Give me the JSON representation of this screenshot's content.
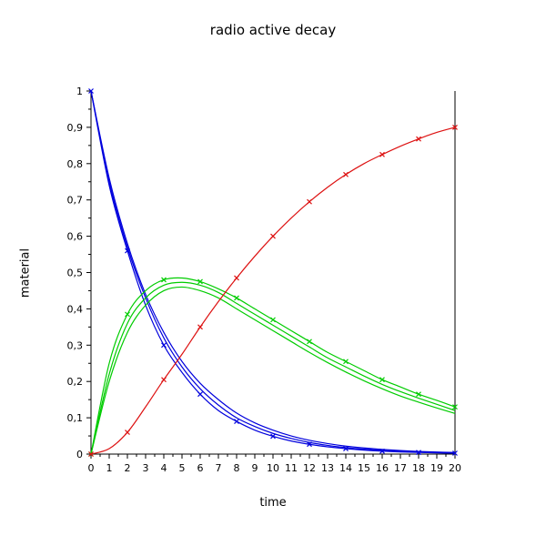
{
  "chart_data": {
    "type": "line",
    "title": "radio active decay",
    "xlabel": "time",
    "ylabel": "material",
    "xlim": [
      0,
      20
    ],
    "ylim": [
      0,
      1
    ],
    "xticks": [
      "0",
      "1",
      "2",
      "3",
      "4",
      "5",
      "6",
      "7",
      "8",
      "9",
      "10",
      "11",
      "12",
      "13",
      "14",
      "15",
      "16",
      "17",
      "18",
      "19",
      "20"
    ],
    "yticks": [
      "0",
      "0,1",
      "0,2",
      "0,3",
      "0,4",
      "0,5",
      "0,6",
      "0,7",
      "0,8",
      "0,9",
      "1"
    ],
    "grid": false,
    "legend": "none",
    "x": [
      0,
      1,
      2,
      3,
      4,
      5,
      6,
      7,
      8,
      9,
      10,
      11,
      12,
      13,
      14,
      15,
      16,
      17,
      18,
      19,
      20
    ],
    "series": [
      {
        "color": "#0000dd",
        "values": [
          1.0,
          0.74,
          0.56,
          0.41,
          0.3,
          0.225,
          0.165,
          0.12,
          0.09,
          0.066,
          0.049,
          0.036,
          0.027,
          0.02,
          0.015,
          0.011,
          0.008,
          0.006,
          0.0045,
          0.0033,
          0.0025
        ]
      },
      {
        "color": "#0000dd",
        "values": [
          1.0,
          0.75,
          0.57,
          0.43,
          0.32,
          0.24,
          0.18,
          0.135,
          0.1,
          0.076,
          0.057,
          0.043,
          0.032,
          0.024,
          0.018,
          0.0135,
          0.01,
          0.0075,
          0.0056,
          0.0042,
          0.0032
        ]
      },
      {
        "color": "#0000dd",
        "values": [
          1.0,
          0.76,
          0.58,
          0.44,
          0.335,
          0.255,
          0.195,
          0.15,
          0.113,
          0.086,
          0.066,
          0.05,
          0.038,
          0.029,
          0.022,
          0.017,
          0.013,
          0.0098,
          0.0074,
          0.0056,
          0.0043
        ]
      },
      {
        "color": "#00cc00",
        "values": [
          0.0,
          0.25,
          0.385,
          0.45,
          0.48,
          0.485,
          0.475,
          0.455,
          0.43,
          0.4,
          0.37,
          0.34,
          0.31,
          0.28,
          0.255,
          0.23,
          0.205,
          0.185,
          0.165,
          0.148,
          0.13
        ]
      },
      {
        "color": "#00cc00",
        "values": [
          0.0,
          0.22,
          0.36,
          0.43,
          0.465,
          0.473,
          0.465,
          0.445,
          0.415,
          0.385,
          0.355,
          0.325,
          0.295,
          0.265,
          0.24,
          0.215,
          0.192,
          0.172,
          0.154,
          0.137,
          0.12
        ]
      },
      {
        "color": "#00cc00",
        "values": [
          0.0,
          0.2,
          0.335,
          0.41,
          0.45,
          0.46,
          0.45,
          0.43,
          0.4,
          0.37,
          0.34,
          0.31,
          0.28,
          0.252,
          0.226,
          0.202,
          0.18,
          0.16,
          0.143,
          0.127,
          0.112
        ]
      },
      {
        "color": "#dd1111",
        "values": [
          0.0,
          0.015,
          0.06,
          0.13,
          0.205,
          0.275,
          0.35,
          0.42,
          0.485,
          0.545,
          0.6,
          0.65,
          0.695,
          0.735,
          0.77,
          0.8,
          0.825,
          0.848,
          0.868,
          0.886,
          0.9
        ]
      }
    ],
    "markers": [
      {
        "series": 0,
        "x": [
          0,
          2,
          4,
          6,
          8,
          10,
          12,
          14,
          16,
          18,
          20
        ]
      },
      {
        "series": 3,
        "x": [
          0,
          2,
          4,
          6,
          8,
          10,
          12,
          14,
          16,
          18,
          20
        ]
      },
      {
        "series": 6,
        "x": [
          0,
          2,
          4,
          6,
          8,
          10,
          12,
          14,
          16,
          18,
          20
        ]
      }
    ]
  }
}
